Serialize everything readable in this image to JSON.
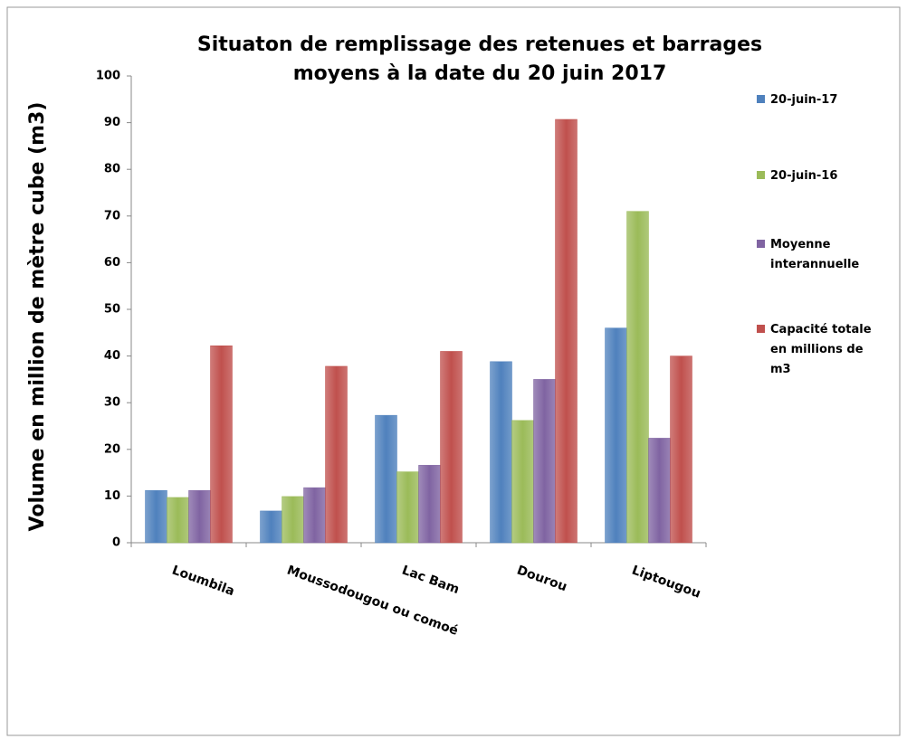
{
  "chart_data": {
    "type": "bar",
    "title": "Situaton de remplissage des retenues et barrages moyens à la date du 20 juin 2017",
    "y_label": "Volume en million de mètre cube (m3)",
    "categories": [
      "Loumbila",
      "Moussodougou ou comoé",
      "Lac Bam",
      "Dourou",
      "Liptougou"
    ],
    "series": [
      {
        "name": "20-juin-17",
        "color": "#4f81bd",
        "values": [
          11.2,
          6.8,
          27.3,
          38.8,
          46
        ]
      },
      {
        "name": "20-juin-16",
        "color": "#9bbb59",
        "values": [
          9.7,
          9.9,
          15.2,
          26.2,
          71
        ]
      },
      {
        "name": "Moyenne interannuelle",
        "color": "#8064a2",
        "values": [
          11.2,
          11.8,
          16.6,
          35,
          22.4
        ]
      },
      {
        "name": "Capacité totale en millions de m3",
        "color": "#c0504d",
        "values": [
          42.2,
          37.8,
          41,
          90.7,
          40
        ]
      }
    ],
    "ylim": [
      0,
      100
    ],
    "yticks": [
      0,
      10,
      20,
      30,
      40,
      50,
      60,
      70,
      80,
      90,
      100
    ],
    "grid": false,
    "legend": "right"
  }
}
